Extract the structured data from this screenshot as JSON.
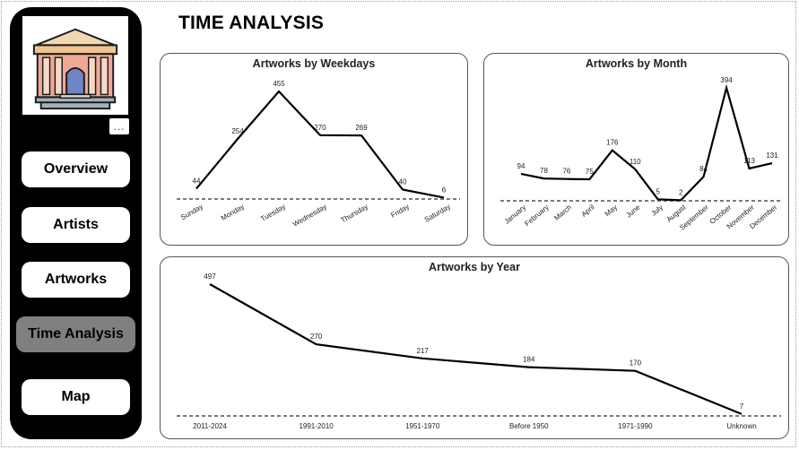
{
  "page": {
    "title": "TIME ANALYSIS"
  },
  "sidebar": {
    "logo": "museum-building-icon",
    "more_icon": "more-options-icon",
    "more_label": "...",
    "nav": [
      {
        "label": "Overview",
        "active": false
      },
      {
        "label": "Artists",
        "active": false
      },
      {
        "label": "Artworks",
        "active": false
      },
      {
        "label": "Time Analysis",
        "active": true
      },
      {
        "label": "Map",
        "active": false
      }
    ],
    "active_color": "#7f7f7f"
  },
  "chart_data": [
    {
      "type": "line",
      "title": "Artworks by Weekdays",
      "categories": [
        "Sunday",
        "Monday",
        "Tuesday",
        "Wednesday",
        "Thursday",
        "Friday",
        "Saturday"
      ],
      "values": [
        44,
        254,
        455,
        270,
        269,
        40,
        6
      ],
      "data_labels": true,
      "grid": false,
      "legend": "none"
    },
    {
      "type": "line",
      "title": "Artworks by Month",
      "categories": [
        "January",
        "February",
        "March",
        "April",
        "May",
        "June",
        "July",
        "August",
        "September",
        "October",
        "November",
        "December"
      ],
      "values": [
        94,
        78,
        76,
        75,
        176,
        110,
        5,
        2,
        84,
        394,
        113,
        131
      ],
      "data_labels": true,
      "grid": false,
      "legend": "none"
    },
    {
      "type": "line",
      "title": "Artworks by Year",
      "categories": [
        "2011-2024",
        "1991-2010",
        "1951-1970",
        "Before 1950",
        "1971-1990",
        "Unknown"
      ],
      "values": [
        497,
        270,
        217,
        184,
        170,
        7
      ],
      "data_labels": true,
      "grid": false,
      "legend": "none"
    }
  ]
}
